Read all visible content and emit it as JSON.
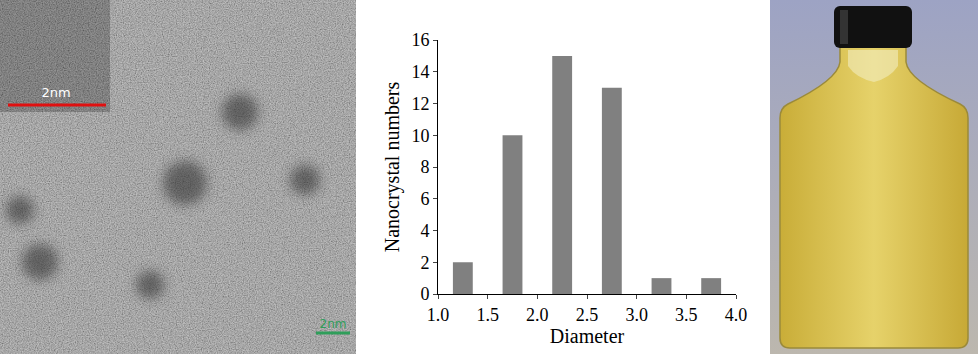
{
  "chart_data": {
    "type": "histogram",
    "bins": [
      1.0,
      1.5,
      2.0,
      2.5,
      3.0,
      3.5,
      4.0
    ],
    "values": [
      2,
      10,
      15,
      13,
      1,
      1
    ],
    "color": "#808080",
    "xlabel": "Diameter",
    "ylabel": "Nanocrystal numbers",
    "xlim": [
      1.0,
      4.0
    ],
    "xticks": [
      {
        "value": 1,
        "label": "1.0"
      },
      1.5,
      {
        "value": 2,
        "label": "2.0"
      },
      2.5,
      {
        "value": 3,
        "label": "3.0"
      },
      3.5,
      {
        "value": 4,
        "label": "4.0"
      }
    ],
    "ylim": [
      0,
      16
    ],
    "yticks": [
      0,
      2,
      4,
      6,
      8,
      10,
      12,
      14,
      16
    ],
    "grid": false
  },
  "micrograph": {
    "inset_scale_label": "2nm",
    "scale_bar_label": "2nm"
  }
}
